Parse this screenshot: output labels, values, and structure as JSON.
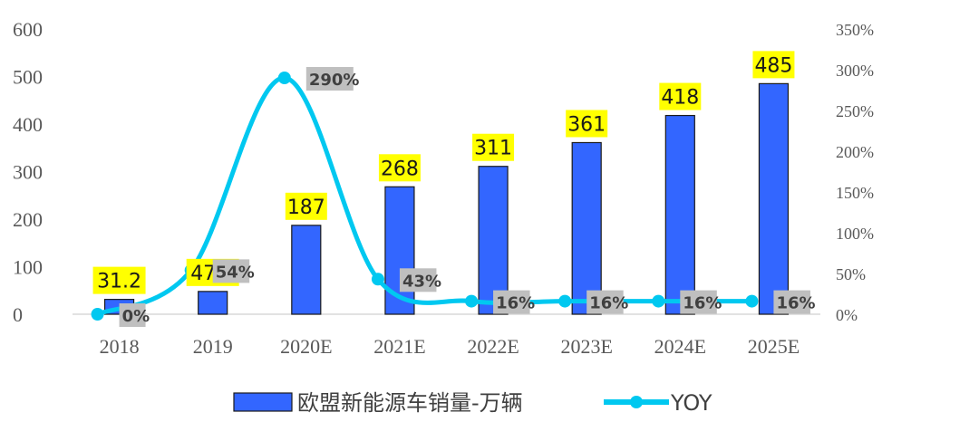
{
  "chart_data": {
    "type": "bar",
    "categories": [
      "2018",
      "2019",
      "2020E",
      "2021E",
      "2022E",
      "2023E",
      "2024E",
      "2025E"
    ],
    "series": [
      {
        "name": "欧盟新能源车销量-万辆",
        "type": "bar",
        "axis": "left",
        "values": [
          31.2,
          47.9,
          187,
          268,
          311,
          361,
          418,
          485
        ],
        "labels": [
          "31.2",
          "47.9",
          "187",
          "268",
          "311",
          "361",
          "418",
          "485"
        ]
      },
      {
        "name": "YOY",
        "type": "line",
        "axis": "right",
        "values": [
          0,
          54,
          290,
          43,
          16,
          16,
          16,
          16
        ],
        "labels": [
          "0%",
          "54%",
          "290%",
          "43%",
          "16%",
          "16%",
          "16%",
          "16%"
        ]
      }
    ],
    "y_left": {
      "ylim": [
        0,
        600
      ],
      "ticks": [
        "0",
        "100",
        "200",
        "300",
        "400",
        "500",
        "600"
      ]
    },
    "y_right": {
      "ylim": [
        0,
        350
      ],
      "ticks": [
        "0%",
        "50%",
        "100%",
        "150%",
        "200%",
        "250%",
        "300%",
        "350%"
      ]
    },
    "legend": {
      "position": "bottom"
    },
    "grid": false
  },
  "colors": {
    "bar": "#3366ff",
    "line": "#00c8f0",
    "bar_label_bg": "#ffff00",
    "pct_label_bg": "#bfbfbf"
  }
}
